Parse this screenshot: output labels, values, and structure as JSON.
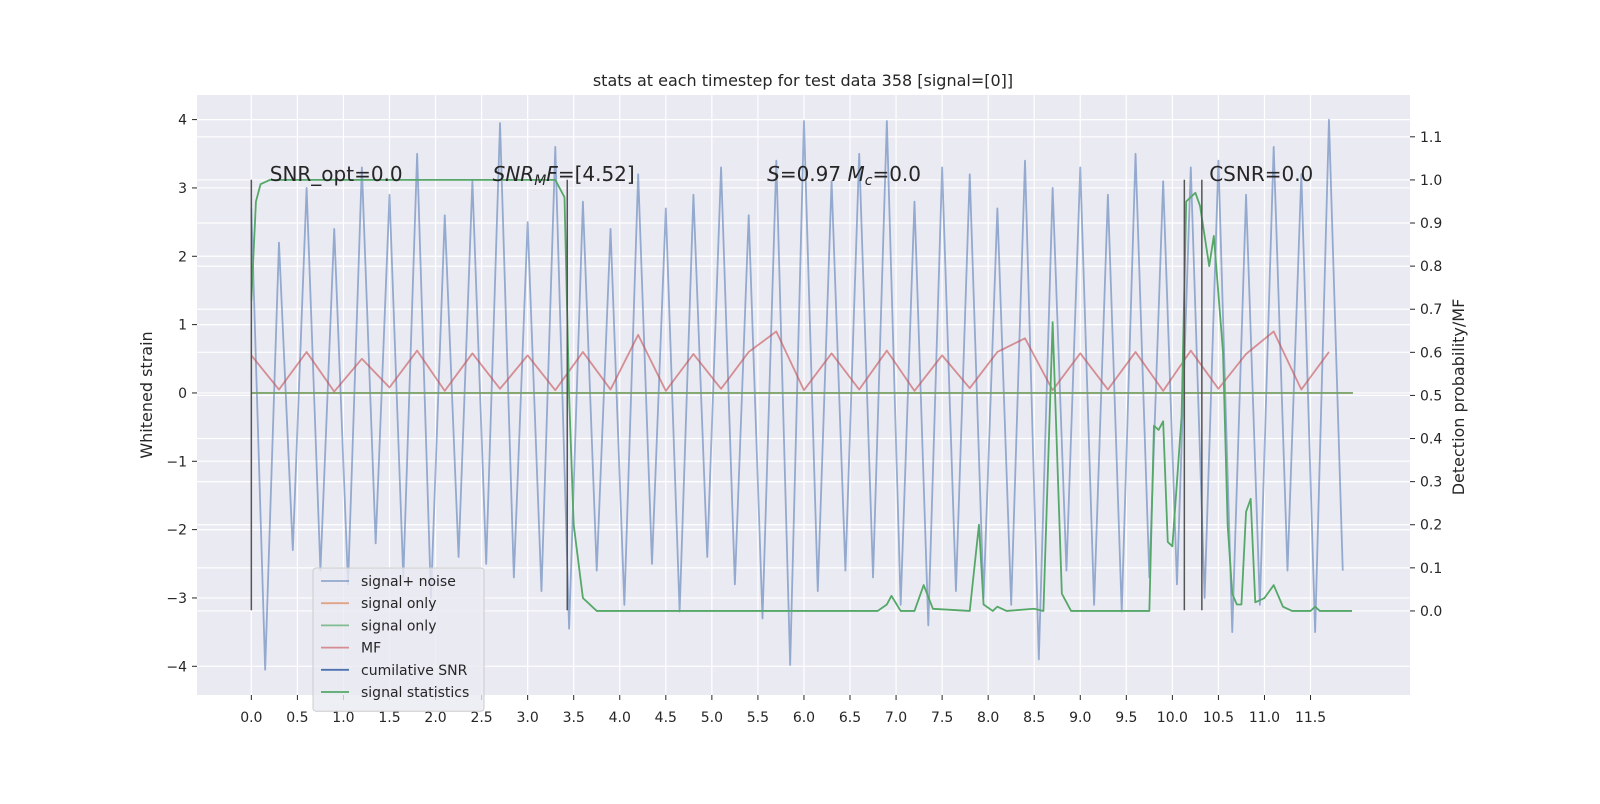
{
  "chart_data": {
    "type": "line",
    "title": "stats at each timestep for test data 358 [signal=[0]]",
    "ylabel": "Whitened strain",
    "y2label": "Detection probability/MF",
    "xlim": [
      -0.59,
      12.58
    ],
    "ylim": [
      -4.42,
      4.36
    ],
    "y2lim": [
      -0.195,
      1.197
    ],
    "xticks": [
      {
        "value": 0,
        "label": "0.0"
      },
      0.5,
      {
        "value": 1,
        "label": "1.0"
      },
      1.5,
      {
        "value": 2,
        "label": "2.0"
      },
      2.5,
      {
        "value": 3,
        "label": "3.0"
      },
      3.5,
      {
        "value": 4,
        "label": "4.0"
      },
      4.5,
      {
        "value": 5,
        "label": "5.0"
      },
      5.5,
      {
        "value": 6,
        "label": "6.0"
      },
      6.5,
      {
        "value": 7,
        "label": "7.0"
      },
      7.5,
      {
        "value": 8,
        "label": "8.0"
      },
      8.5,
      {
        "value": 9,
        "label": "9.0"
      },
      9.5,
      {
        "value": 10,
        "label": "10.0"
      },
      10.5,
      {
        "value": 11,
        "label": "11.0"
      },
      11.5
    ],
    "yticks": [
      {
        "value": -4,
        "label": "−4"
      },
      {
        "value": -3,
        "label": "−3"
      },
      {
        "value": -2,
        "label": "−2"
      },
      {
        "value": -1,
        "label": "−1"
      },
      0,
      1,
      2,
      3,
      4
    ],
    "y2ticks": [
      {
        "value": 0,
        "label": "0.0"
      },
      0.1,
      0.2,
      0.3,
      0.4,
      0.5,
      0.6,
      0.7,
      0.8,
      0.9,
      {
        "value": 1,
        "label": "1.0"
      },
      1.1
    ],
    "grid": true,
    "background": "#eaeaf2",
    "legend": "lower left",
    "series": [
      {
        "name": "signal+ noise",
        "color": "#4c72b0",
        "alpha": 0.55,
        "axis": "y",
        "x": [
          0,
          0.15,
          0.3,
          0.45,
          0.6,
          0.75,
          0.9,
          1.05,
          1.2,
          1.35,
          1.5,
          1.65,
          1.8,
          1.95,
          2.1,
          2.25,
          2.4,
          2.55,
          2.7,
          2.85,
          3,
          3.15,
          3.3,
          3.45,
          3.6,
          3.75,
          3.9,
          4.05,
          4.2,
          4.35,
          4.5,
          4.65,
          4.8,
          4.95,
          5.1,
          5.25,
          5.4,
          5.55,
          5.7,
          5.85,
          6,
          6.15,
          6.3,
          6.45,
          6.6,
          6.75,
          6.9,
          7.05,
          7.2,
          7.35,
          7.5,
          7.65,
          7.8,
          7.95,
          8.1,
          8.25,
          8.4,
          8.55,
          8.7,
          8.85,
          9,
          9.15,
          9.3,
          9.45,
          9.6,
          9.75,
          9.9,
          10.05,
          10.2,
          10.35,
          10.5,
          10.65,
          10.8,
          10.95,
          11.1,
          11.25,
          11.4,
          11.55,
          11.7,
          11.85
        ],
        "values": [
          2.7,
          -4.05,
          2.2,
          -2.3,
          3.0,
          -2.6,
          2.4,
          -2.8,
          3.3,
          -2.2,
          2.9,
          -2.7,
          3.5,
          -3.0,
          2.6,
          -2.4,
          3.1,
          -2.5,
          3.95,
          -2.7,
          2.5,
          -2.9,
          3.6,
          -3.45,
          2.8,
          -2.6,
          2.4,
          -3.1,
          3.2,
          -2.5,
          2.7,
          -3.2,
          2.9,
          -2.4,
          3.3,
          -2.8,
          2.6,
          -3.3,
          3.4,
          -3.98,
          3.98,
          -2.9,
          3.1,
          -2.6,
          3.5,
          -2.7,
          3.98,
          -3.1,
          2.8,
          -3.4,
          3.3,
          -2.9,
          3.2,
          -3.0,
          2.7,
          -3.1,
          3.4,
          -3.9,
          3.0,
          -2.6,
          3.3,
          -3.1,
          2.9,
          -3.2,
          3.5,
          -2.7,
          3.1,
          -2.8,
          3.3,
          -3.0,
          3.4,
          -3.5,
          2.9,
          -3.1,
          3.6,
          -2.6,
          3.2,
          -3.5,
          4.0,
          -2.6
        ]
      },
      {
        "name": "signal only",
        "color": "#dd8452",
        "alpha": 0.7,
        "axis": "y",
        "x": [
          0,
          11.96
        ],
        "values": [
          0,
          0
        ]
      },
      {
        "name": "signal only",
        "color": "#55a868",
        "alpha": 0.7,
        "axis": "y",
        "x": [
          0,
          11.96
        ],
        "values": [
          0,
          0
        ]
      },
      {
        "name": "MF",
        "color": "#c44e52",
        "alpha": 0.6,
        "axis": "y",
        "x": [
          0,
          0.3,
          0.6,
          0.9,
          1.2,
          1.5,
          1.8,
          2.1,
          2.4,
          2.7,
          3,
          3.3,
          3.6,
          3.9,
          4.2,
          4.5,
          4.8,
          5.1,
          5.4,
          5.7,
          6,
          6.3,
          6.6,
          6.9,
          7.2,
          7.5,
          7.8,
          8.1,
          8.4,
          8.7,
          9,
          9.3,
          9.6,
          9.9,
          10.2,
          10.5,
          10.8,
          11.1,
          11.4,
          11.7
        ],
        "values": [
          0.55,
          0.05,
          0.6,
          0.02,
          0.5,
          0.08,
          0.62,
          0.03,
          0.58,
          0.06,
          0.55,
          0.04,
          0.6,
          0.05,
          0.85,
          0.03,
          0.57,
          0.06,
          0.6,
          0.9,
          0.04,
          0.58,
          0.05,
          0.62,
          0.03,
          0.55,
          0.07,
          0.6,
          0.8,
          0.04,
          0.58,
          0.05,
          0.6,
          0.03,
          0.62,
          0.06,
          0.57,
          0.9,
          0.05,
          0.6
        ]
      },
      {
        "name": "cumilative SNR",
        "color": "#4c72b0",
        "alpha": 1,
        "axis": "y",
        "x": [],
        "values": []
      },
      {
        "name": "signal statistics",
        "color": "#55a868",
        "alpha": 1,
        "axis": "y2",
        "x": [
          0,
          0.05,
          0.1,
          0.2,
          3.3,
          3.4,
          3.45,
          3.5,
          3.6,
          3.75,
          4.0,
          6.8,
          6.9,
          6.95,
          7.05,
          7.2,
          7.3,
          7.4,
          7.8,
          7.9,
          7.95,
          8.05,
          8.1,
          8.2,
          8.5,
          8.6,
          8.7,
          8.8,
          8.9,
          9.75,
          9.8,
          9.85,
          9.9,
          9.95,
          10.0,
          10.1,
          10.15,
          10.25,
          10.3,
          10.4,
          10.45,
          10.55,
          10.6,
          10.65,
          10.7,
          10.75,
          10.8,
          10.85,
          10.9,
          11.0,
          11.1,
          11.2,
          11.3,
          11.5,
          11.55,
          11.6,
          11.95
        ],
        "values": [
          0.72,
          0.95,
          0.99,
          1.0,
          1.0,
          0.96,
          0.5,
          0.2,
          0.03,
          0.0,
          0.0,
          0.0,
          0.015,
          0.035,
          0.0,
          0.0,
          0.06,
          0.005,
          0.0,
          0.2,
          0.015,
          0.0,
          0.01,
          0.0,
          0.005,
          0.0,
          0.67,
          0.04,
          0.0,
          0.0,
          0.43,
          0.42,
          0.44,
          0.16,
          0.15,
          0.45,
          0.95,
          0.97,
          0.94,
          0.8,
          0.87,
          0.6,
          0.2,
          0.04,
          0.015,
          0.015,
          0.23,
          0.26,
          0.02,
          0.03,
          0.06,
          0.01,
          0.0,
          0.0,
          0.01,
          0.0,
          0.0
        ]
      }
    ],
    "vlines": {
      "x": [
        0,
        3.43,
        10.13,
        10.32
      ],
      "ymin": -3.18,
      "ymax": 3.12,
      "color": "#555555"
    },
    "annotations": [
      {
        "x": 0.2,
        "y": 3.1,
        "parts": [
          {
            "text": "SNR_opt=0.0"
          }
        ]
      },
      {
        "x": 2.62,
        "y": 3.1,
        "parts": [
          {
            "text": "SNR",
            "italic": true
          },
          {
            "text": "M",
            "italic": true,
            "sub": true
          },
          {
            "text": "F",
            "italic": true
          },
          {
            "text": "=[4.52]"
          }
        ]
      },
      {
        "x": 5.6,
        "y": 3.1,
        "parts": [
          {
            "text": "S",
            "italic": true
          },
          {
            "text": "=0.97  "
          },
          {
            "text": "M",
            "italic": true
          },
          {
            "text": "c",
            "italic": true,
            "sub": true
          },
          {
            "text": "=0.0"
          }
        ]
      },
      {
        "x": 10.4,
        "y": 3.1,
        "parts": [
          {
            "text": "CSNR=0.0"
          }
        ]
      }
    ]
  }
}
